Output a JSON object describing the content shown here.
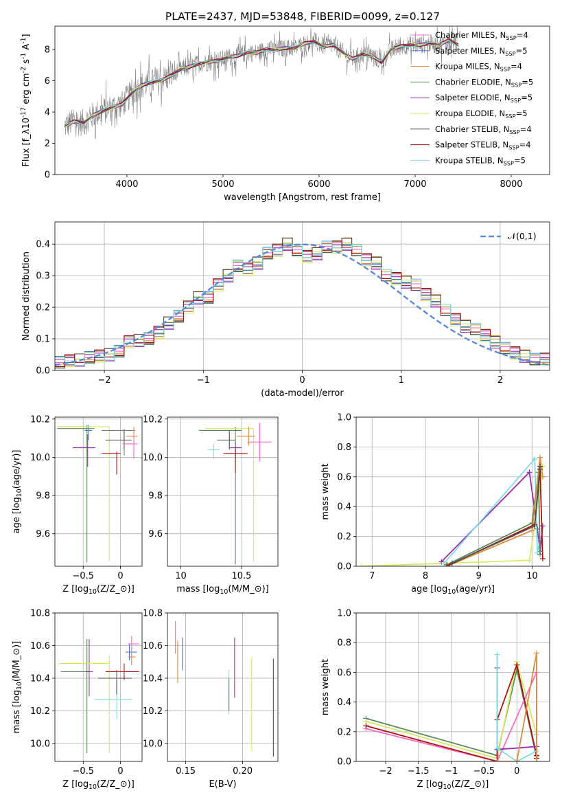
{
  "chart_data": [
    {
      "id": "spectrum",
      "type": "line",
      "title": "PLATE=2437, MJD=53848, FIBERID=0099, z=0.127",
      "xlabel": "wavelength [Angstrom, rest frame]",
      "ylabel": "Flux [f$_\\lambda$10$^{-17}$ erg cm$^{-2}$ s$^{-1}$ A$^{-1}$]",
      "xlim": [
        3250,
        8400
      ],
      "ylim": [
        0,
        9.5
      ],
      "xticks": [
        4000,
        5000,
        6000,
        7000,
        8000
      ],
      "yticks": [
        0,
        2,
        4,
        6,
        8
      ],
      "legend_location": "upper right",
      "legend": [
        {
          "text": "Chabrier MILES, N$_{SSP}$=4",
          "color": "#ff66cc"
        },
        {
          "text": "Salpeter MILES, N$_{SSP}$=5",
          "color": "#4477dd"
        },
        {
          "text": "Kroupa MILES, N$_{SSP}$=4",
          "color": "#e08a3c"
        },
        {
          "text": "Chabrier ELODIE, N$_{SSP}$=5",
          "color": "#5a8a5a"
        },
        {
          "text": "Salpeter ELODIE, N$_{SSP}$=5",
          "color": "#9a2ab0"
        },
        {
          "text": "Kroupa ELODIE, N$_{SSP}$=5",
          "color": "#d8e860"
        },
        {
          "text": "Chabrier STELIB, N$_{SSP}$=4",
          "color": "#505050"
        },
        {
          "text": "Salpeter STELIB, N$_{SSP}$=4",
          "color": "#aa1111"
        },
        {
          "text": "Kroupa STELIB, N$_{SSP}$=5",
          "color": "#7fdde0"
        }
      ],
      "data_color": "#808080",
      "model_points": [
        [
          3350,
          3.1
        ],
        [
          3450,
          3.4
        ],
        [
          3550,
          3.3
        ],
        [
          3650,
          3.8
        ],
        [
          3750,
          4.1
        ],
        [
          3850,
          4.3
        ],
        [
          3950,
          4.5
        ],
        [
          4050,
          5.2
        ],
        [
          4150,
          5.7
        ],
        [
          4250,
          5.9
        ],
        [
          4350,
          6.0
        ],
        [
          4450,
          6.3
        ],
        [
          4550,
          6.7
        ],
        [
          4650,
          6.9
        ],
        [
          4750,
          7.1
        ],
        [
          4850,
          7.2
        ],
        [
          4950,
          7.3
        ],
        [
          5050,
          7.5
        ],
        [
          5150,
          7.6
        ],
        [
          5250,
          7.8
        ],
        [
          5350,
          7.8
        ],
        [
          5450,
          8.0
        ],
        [
          5550,
          8.0
        ],
        [
          5650,
          8.1
        ],
        [
          5750,
          8.1
        ],
        [
          5850,
          8.4
        ],
        [
          5950,
          8.5
        ],
        [
          6050,
          8.2
        ],
        [
          6150,
          8.3
        ],
        [
          6250,
          7.8
        ],
        [
          6350,
          7.4
        ],
        [
          6450,
          7.7
        ],
        [
          6550,
          7.6
        ],
        [
          6650,
          7.2
        ],
        [
          6750,
          8.0
        ],
        [
          6850,
          8.2
        ],
        [
          6950,
          8.3
        ],
        [
          7050,
          8.3
        ],
        [
          7150,
          8.4
        ],
        [
          7250,
          8.3
        ],
        [
          7350,
          8.6
        ],
        [
          7450,
          8.3
        ]
      ]
    },
    {
      "id": "residual-histogram",
      "type": "line",
      "xlabel": "(data-model)/error",
      "ylabel": "Normed distribution",
      "xlim": [
        -2.5,
        2.5
      ],
      "ylim": [
        0,
        0.47
      ],
      "xticks": [
        -2,
        -1,
        0,
        1,
        2
      ],
      "yticks": [
        0.0,
        0.1,
        0.2,
        0.3,
        0.4
      ],
      "legend": [
        {
          "text": "$\\mathcal{N}(0,1)$",
          "color": "#5b8ad8"
        }
      ],
      "bin_edges": [
        -2.5,
        -2.4,
        -2.3,
        -2.2,
        -2.1,
        -2.0,
        -1.9,
        -1.8,
        -1.7,
        -1.6,
        -1.5,
        -1.4,
        -1.3,
        -1.2,
        -1.1,
        -1.0,
        -0.9,
        -0.8,
        -0.7,
        -0.6,
        -0.5,
        -0.4,
        -0.3,
        -0.2,
        -0.1,
        0.0,
        0.1,
        0.2,
        0.3,
        0.4,
        0.5,
        0.6,
        0.7,
        0.8,
        0.9,
        1.0,
        1.1,
        1.2,
        1.3,
        1.4,
        1.5,
        1.6,
        1.7,
        1.8,
        1.9,
        2.0,
        2.1,
        2.2,
        2.3,
        2.4,
        2.5
      ],
      "hist_values": [
        0.025,
        0.03,
        0.033,
        0.04,
        0.045,
        0.05,
        0.06,
        0.09,
        0.095,
        0.1,
        0.12,
        0.15,
        0.17,
        0.2,
        0.23,
        0.23,
        0.27,
        0.3,
        0.33,
        0.32,
        0.34,
        0.37,
        0.38,
        0.4,
        0.38,
        0.36,
        0.37,
        0.39,
        0.39,
        0.4,
        0.38,
        0.35,
        0.34,
        0.3,
        0.29,
        0.28,
        0.27,
        0.24,
        0.22,
        0.19,
        0.16,
        0.14,
        0.13,
        0.11,
        0.09,
        0.07,
        0.055,
        0.045,
        0.035,
        0.035
      ]
    },
    {
      "id": "age-vs-Z",
      "type": "scatter",
      "xlabel": "Z [log$_{10}$($Z/Z_\\odot$)]",
      "ylabel": "age  [log$_{10}$($age/yr$)]",
      "xlim": [
        -0.88,
        0.29
      ],
      "ylim": [
        9.43,
        10.21
      ],
      "xticks": [
        -0.5,
        0.0
      ],
      "yticks": [
        9.6,
        9.8,
        10.0,
        10.2
      ],
      "points": [
        {
          "x": -0.45,
          "y": 10.15,
          "xerr": [
            0.4,
            0.1
          ],
          "yerr": [
            0.7,
            0.02
          ],
          "color": "#5a8a5a"
        },
        {
          "x": -0.43,
          "y": 10.14,
          "xerr": [
            0.05,
            0.05
          ],
          "yerr": [
            0.05,
            0.03
          ],
          "color": "#4477dd"
        },
        {
          "x": -0.44,
          "y": 10.05,
          "xerr": [
            0.2,
            0.1
          ],
          "yerr": [
            0.1,
            0.07
          ],
          "color": "#9a2ab0"
        },
        {
          "x": -0.15,
          "y": 10.16,
          "xerr": [
            0.7,
            0.0
          ],
          "yerr": [
            0.7,
            0.0
          ],
          "color": "#d8e860"
        },
        {
          "x": 0.05,
          "y": 10.14,
          "xerr": [
            0.3,
            0.15
          ],
          "yerr": [
            0.13,
            0.01
          ],
          "color": "#808080"
        },
        {
          "x": 0.05,
          "y": 10.09,
          "xerr": [
            0.25,
            0.1
          ],
          "yerr": [
            0.05,
            0.05
          ],
          "color": "#505050"
        },
        {
          "x": 0.18,
          "y": 10.11,
          "xerr": [
            0.1,
            0.05
          ],
          "yerr": [
            0.08,
            0.05
          ],
          "color": "#e08a3c"
        },
        {
          "x": 0.18,
          "y": 10.07,
          "xerr": [
            0.15,
            0.05
          ],
          "yerr": [
            0.08,
            0.04
          ],
          "color": "#ff66cc"
        },
        {
          "x": -0.05,
          "y": 10.02,
          "xerr": [
            0.2,
            0.05
          ],
          "yerr": [
            0.11,
            0.01
          ],
          "color": "#aa1111"
        }
      ]
    },
    {
      "id": "age-vs-mass",
      "type": "scatter",
      "xlabel": "mass [log$_{10}$($M/M_\\odot$)]",
      "ylabel": "",
      "xlim": [
        9.89,
        10.8
      ],
      "ylim": [
        9.43,
        10.21
      ],
      "xticks": [
        10.0,
        10.5
      ],
      "yticks": [
        9.6,
        9.8,
        10.0,
        10.2
      ],
      "points": [
        {
          "x": 10.45,
          "y": 10.14,
          "xerr": [
            0.3,
            0.05
          ],
          "yerr": [
            0.7,
            0.02
          ],
          "color": "#5a8a5a"
        },
        {
          "x": 10.6,
          "y": 10.15,
          "xerr": [
            0.4,
            0.0
          ],
          "yerr": [
            0.7,
            0.0
          ],
          "color": "#d8e860"
        },
        {
          "x": 10.27,
          "y": 10.04,
          "xerr": [
            0.05,
            0.05
          ],
          "yerr": [
            0.05,
            0.03
          ],
          "color": "#7fdde0"
        },
        {
          "x": 10.65,
          "y": 10.08,
          "xerr": [
            0.1,
            0.1
          ],
          "yerr": [
            0.1,
            0.1
          ],
          "color": "#ff66cc"
        },
        {
          "x": 10.56,
          "y": 10.11,
          "xerr": [
            0.1,
            0.05
          ],
          "yerr": [
            0.05,
            0.05
          ],
          "color": "#e08a3c"
        },
        {
          "x": 10.45,
          "y": 10.05,
          "xerr": [
            0.05,
            0.05
          ],
          "yerr": [
            0.04,
            0.03
          ],
          "color": "#9a2ab0"
        },
        {
          "x": 10.45,
          "y": 10.02,
          "xerr": [
            0.1,
            0.1
          ],
          "yerr": [
            0.1,
            0.03
          ],
          "color": "#aa1111"
        },
        {
          "x": 10.4,
          "y": 10.09,
          "xerr": [
            0.1,
            0.05
          ],
          "yerr": [
            0.05,
            0.05
          ],
          "color": "#505050"
        }
      ]
    },
    {
      "id": "weight-vs-age",
      "type": "line",
      "xlabel": "age  [log$_{10}$($age/yr$)]",
      "ylabel": "mass weight",
      "xlim": [
        6.7,
        10.33
      ],
      "ylim": [
        0,
        1.0
      ],
      "xticks": [
        7,
        8,
        9,
        10
      ],
      "yticks": [
        0.0,
        0.2,
        0.4,
        0.6,
        0.8,
        1.0
      ],
      "series": [
        {
          "color": "#d8e860",
          "x": [
            6.8,
            9.95,
            10.05,
            10.15,
            10.2
          ],
          "y": [
            0.0,
            0.04,
            0.27,
            0.55,
            0.67
          ]
        },
        {
          "color": "#9a2ab0",
          "x": [
            8.3,
            9.95,
            10.1,
            10.15,
            10.2
          ],
          "y": [
            0.03,
            0.63,
            0.25,
            0.1,
            0.27
          ]
        },
        {
          "color": "#7fdde0",
          "x": [
            8.35,
            10.05,
            10.1,
            10.15
          ],
          "y": [
            0.02,
            0.72,
            0.09,
            0.18
          ]
        },
        {
          "color": "#5a8a5a",
          "x": [
            8.4,
            10.0,
            10.12,
            10.15
          ],
          "y": [
            0.01,
            0.29,
            0.63,
            0.08
          ]
        },
        {
          "color": "#e08a3c",
          "x": [
            8.4,
            10.0,
            10.15,
            10.2
          ],
          "y": [
            0.0,
            0.24,
            0.73,
            0.6
          ]
        },
        {
          "color": "#aa1111",
          "x": [
            8.4,
            10.05,
            10.15,
            10.2
          ],
          "y": [
            0.0,
            0.28,
            0.65,
            0.05
          ]
        },
        {
          "color": "#505050",
          "x": [
            8.5,
            10.05,
            10.15
          ],
          "y": [
            0.02,
            0.27,
            0.67
          ]
        }
      ]
    },
    {
      "id": "mass-vs-Z",
      "type": "scatter",
      "xlabel": "Z [log$_{10}$($Z/Z_\\odot$)]",
      "ylabel": "mass [log$_{10}$($M/M_\\odot$)]",
      "xlim": [
        -0.88,
        0.29
      ],
      "ylim": [
        9.89,
        10.8
      ],
      "xticks": [
        -0.5,
        0.0
      ],
      "yticks": [
        10.0,
        10.2,
        10.4,
        10.6,
        10.8
      ],
      "points": [
        {
          "x": -0.45,
          "y": 10.44,
          "xerr": [
            0.35,
            0.0
          ],
          "yerr": [
            0.5,
            0.2
          ],
          "color": "#5a8a5a"
        },
        {
          "x": -0.42,
          "y": 10.44,
          "xerr": [
            0.05,
            0.05
          ],
          "yerr": [
            0.15,
            0.2
          ],
          "color": "#9a2ab0"
        },
        {
          "x": -0.15,
          "y": 10.49,
          "xerr": [
            0.68,
            0.0
          ],
          "yerr": [
            0.55,
            0.05
          ],
          "color": "#d8e860"
        },
        {
          "x": -0.05,
          "y": 10.27,
          "xerr": [
            0.3,
            0.2
          ],
          "yerr": [
            0.12,
            0.1
          ],
          "color": "#7fdde0"
        },
        {
          "x": -0.05,
          "y": 10.4,
          "xerr": [
            0.25,
            0.2
          ],
          "yerr": [
            0.1,
            0.05
          ],
          "color": "#505050"
        },
        {
          "x": 0.05,
          "y": 10.44,
          "xerr": [
            0.25,
            0.2
          ],
          "yerr": [
            0.05,
            0.05
          ],
          "color": "#aa1111"
        },
        {
          "x": 0.12,
          "y": 10.56,
          "xerr": [
            0.05,
            0.1
          ],
          "yerr": [
            0.05,
            0.05
          ],
          "color": "#4477dd"
        },
        {
          "x": 0.15,
          "y": 10.53,
          "xerr": [
            0.05,
            0.05
          ],
          "yerr": [
            0.05,
            0.05
          ],
          "color": "#e08a3c"
        },
        {
          "x": 0.15,
          "y": 10.61,
          "xerr": [
            0.05,
            0.1
          ],
          "yerr": [
            0.03,
            0.05
          ],
          "color": "#ff66cc"
        }
      ]
    },
    {
      "id": "mass-vs-EBV",
      "type": "scatter",
      "xlabel": "E(B-V)",
      "ylabel": "",
      "xlim": [
        0.134,
        0.231
      ],
      "ylim": [
        9.89,
        10.8
      ],
      "xticks": [
        0.15,
        0.2
      ],
      "yticks": [
        10.0,
        10.2,
        10.4,
        10.6,
        10.8
      ],
      "points": [
        {
          "x": 0.141,
          "y": 10.65,
          "yerr": [
            0.1,
            0.1
          ],
          "color": "#ff66cc"
        },
        {
          "x": 0.143,
          "y": 10.5,
          "yerr": [
            0.13,
            0.13
          ],
          "color": "#e08a3c"
        },
        {
          "x": 0.147,
          "y": 10.55,
          "yerr": [
            0.1,
            0.1
          ],
          "color": "#4477dd"
        },
        {
          "x": 0.188,
          "y": 10.35,
          "yerr": [
            0.17,
            0.1
          ],
          "color": "#7fdde0"
        },
        {
          "x": 0.188,
          "y": 10.3,
          "yerr": [
            0.1,
            0.1
          ],
          "color": "#5a8a5a"
        },
        {
          "x": 0.193,
          "y": 10.45,
          "yerr": [
            0.17,
            0.2
          ],
          "color": "#9a2ab0"
        },
        {
          "x": 0.208,
          "y": 10.25,
          "yerr": [
            0.3,
            0.28
          ],
          "color": "#d8e860"
        },
        {
          "x": 0.227,
          "y": 10.22,
          "yerr": [
            0.3,
            0.3
          ],
          "color": "#505050"
        }
      ]
    },
    {
      "id": "weight-vs-Z",
      "type": "line",
      "xlabel": "Z [log$_{10}$($Z/Z_\\odot$)]",
      "ylabel": "mass weight",
      "xlim": [
        -2.45,
        0.5
      ],
      "ylim": [
        0,
        1.0
      ],
      "xticks": [
        -2.0,
        -1.5,
        -1.0,
        -0.5,
        0.0
      ],
      "yticks": [
        0.0,
        0.2,
        0.4,
        0.6,
        0.8,
        1.0
      ],
      "series": [
        {
          "color": "#5a8a5a",
          "x": [
            -2.3,
            -0.3,
            0.0,
            0.3
          ],
          "y": [
            0.29,
            0.04,
            0.62,
            0.03
          ]
        },
        {
          "color": "#d8e860",
          "x": [
            -2.3,
            -0.3,
            0.0,
            0.3
          ],
          "y": [
            0.27,
            0.02,
            0.67,
            0.18
          ]
        },
        {
          "color": "#ff66cc",
          "x": [
            -2.3,
            -0.3,
            0.3,
            0.3
          ],
          "y": [
            0.22,
            0.0,
            0.6,
            0.02
          ]
        },
        {
          "color": "#aa1111",
          "x": [
            -2.3,
            -0.3,
            -0.3,
            0.0,
            0.3,
            0.3
          ],
          "y": [
            0.24,
            0.0,
            0.28,
            0.65,
            0.04,
            0.02
          ]
        },
        {
          "color": "#9a2ab0",
          "x": [
            -0.3,
            -0.3,
            0.3
          ],
          "y": [
            0.63,
            0.08,
            0.1
          ]
        },
        {
          "color": "#7fdde0",
          "x": [
            -0.3,
            -0.3,
            0.0,
            0.3,
            0.3
          ],
          "y": [
            0.72,
            0.09,
            0.0,
            0.07,
            0.18
          ]
        },
        {
          "color": "#e08a3c",
          "x": [
            -0.3,
            0.0,
            0.3,
            0.3
          ],
          "y": [
            0.0,
            0.0,
            0.73,
            0.0
          ]
        }
      ]
    }
  ]
}
